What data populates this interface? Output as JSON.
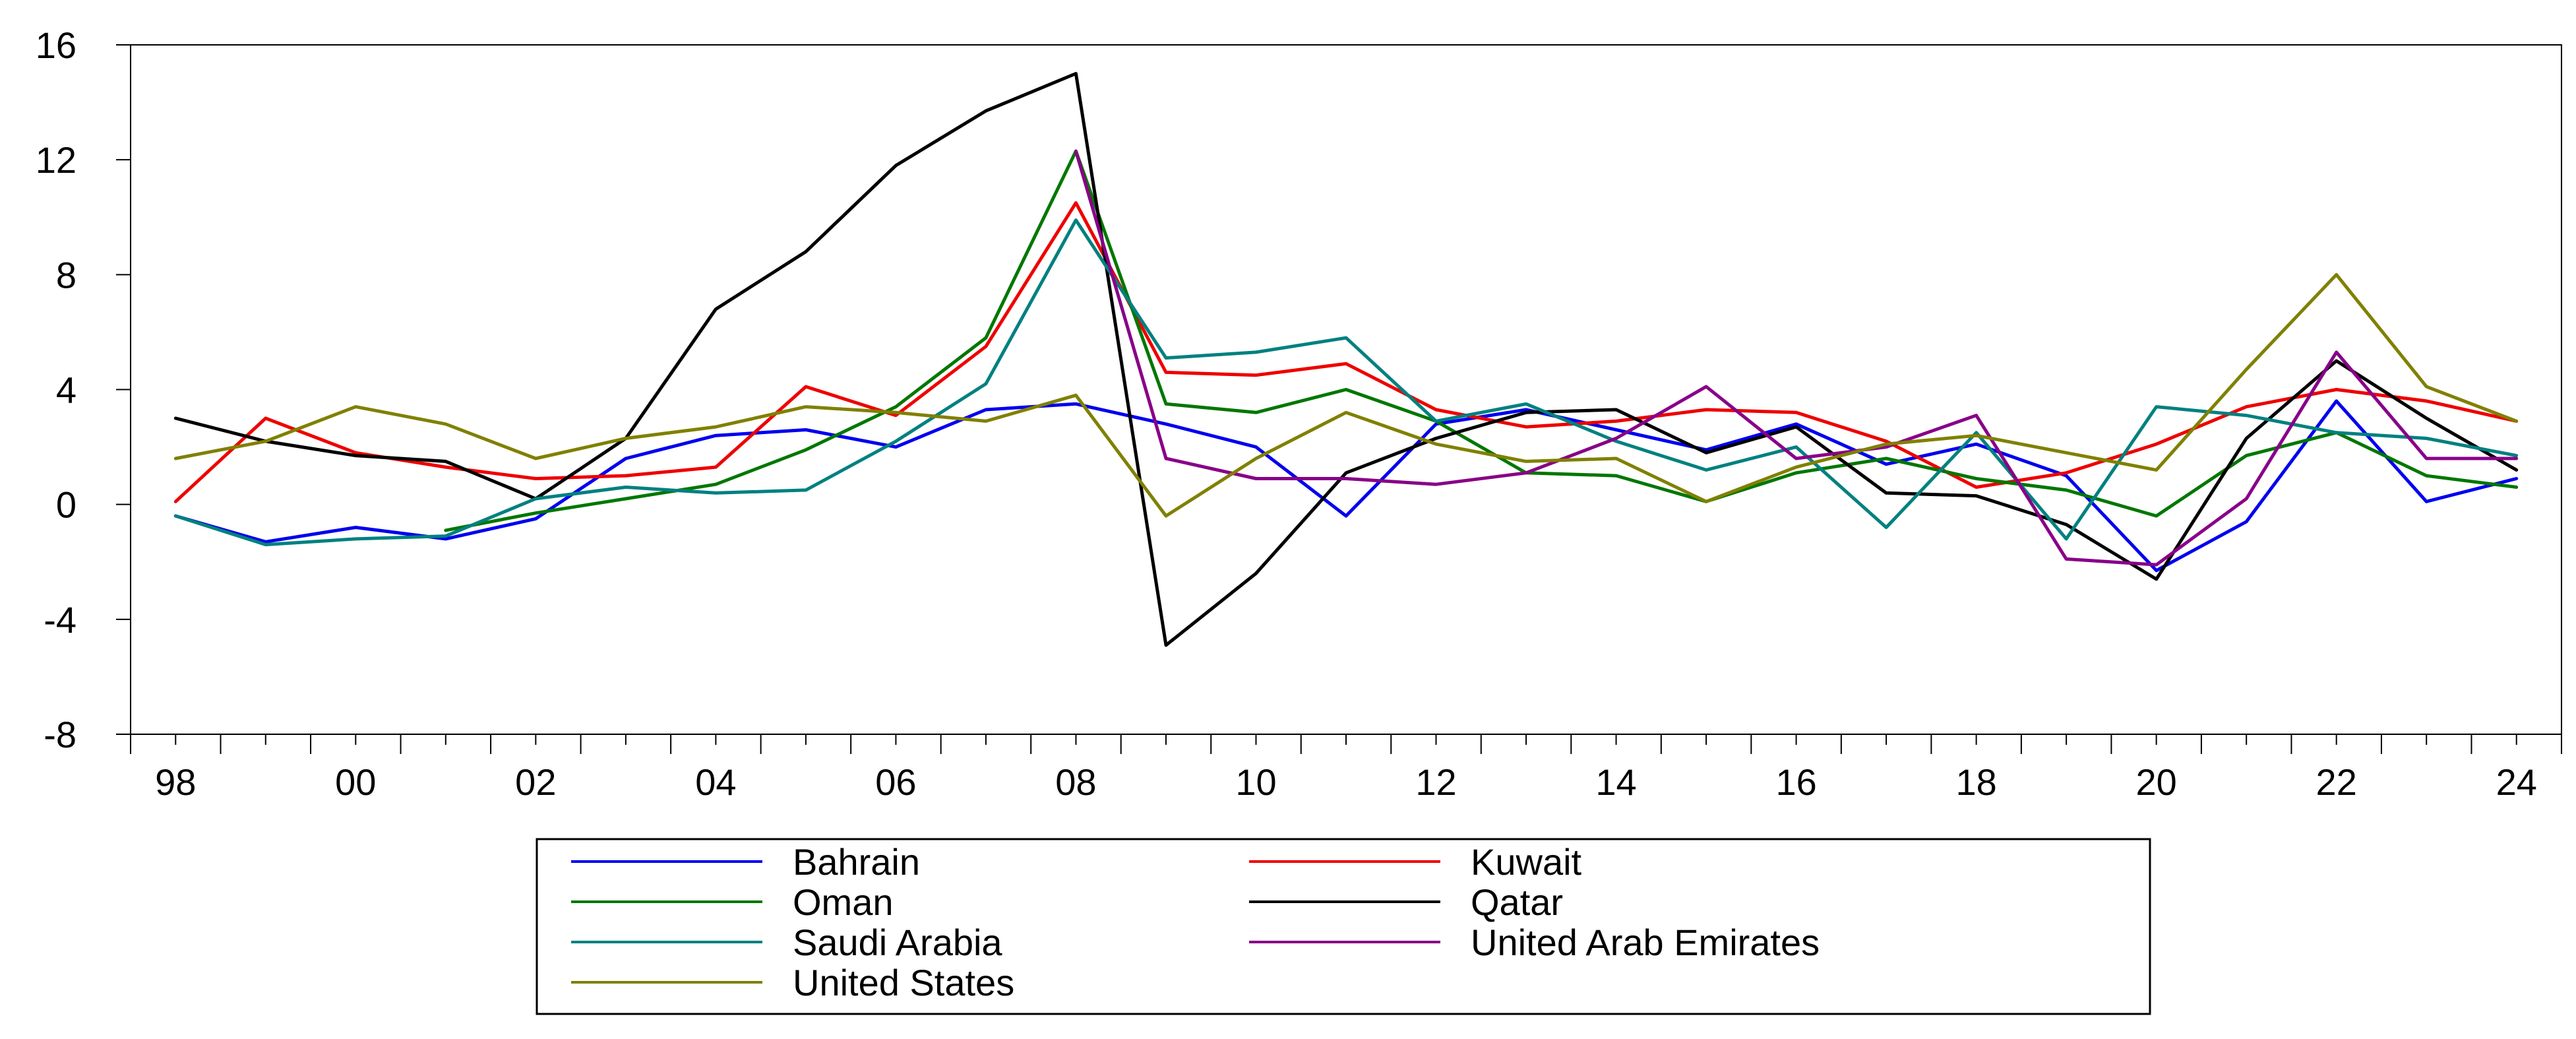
{
  "chart_data": {
    "type": "line",
    "title": "",
    "xlabel": "",
    "ylabel": "",
    "x": [
      1998,
      1999,
      2000,
      2001,
      2002,
      2003,
      2004,
      2005,
      2006,
      2007,
      2008,
      2009,
      2010,
      2011,
      2012,
      2013,
      2014,
      2015,
      2016,
      2017,
      2018,
      2019,
      2020,
      2021,
      2022,
      2023,
      2024
    ],
    "xlim": [
      1997.5,
      2024.5
    ],
    "ylim": [
      -8,
      16
    ],
    "yticks": [
      -8,
      -4,
      0,
      4,
      8,
      12,
      16
    ],
    "xtick_labels": [
      {
        "x": 1998,
        "label": "98"
      },
      {
        "x": 2000,
        "label": "00"
      },
      {
        "x": 2002,
        "label": "02"
      },
      {
        "x": 2004,
        "label": "04"
      },
      {
        "x": 2006,
        "label": "06"
      },
      {
        "x": 2008,
        "label": "08"
      },
      {
        "x": 2010,
        "label": "10"
      },
      {
        "x": 2012,
        "label": "12"
      },
      {
        "x": 2014,
        "label": "14"
      },
      {
        "x": 2016,
        "label": "16"
      },
      {
        "x": 2018,
        "label": "18"
      },
      {
        "x": 2020,
        "label": "20"
      },
      {
        "x": 2022,
        "label": "22"
      },
      {
        "x": 2024,
        "label": "24"
      }
    ],
    "grid": false,
    "legend": "bottom",
    "series": [
      {
        "name": "Bahrain",
        "color": "#0000ee",
        "values": [
          -0.4,
          -1.3,
          -0.8,
          -1.2,
          -0.5,
          1.6,
          2.4,
          2.6,
          2.0,
          3.3,
          3.5,
          2.8,
          2.0,
          -0.4,
          2.8,
          3.3,
          2.6,
          1.9,
          2.8,
          1.4,
          2.1,
          1.0,
          -2.3,
          -0.6,
          3.6,
          0.1,
          0.9
        ]
      },
      {
        "name": "Kuwait",
        "color": "#ee0000",
        "values": [
          0.1,
          3.0,
          1.8,
          1.3,
          0.9,
          1.0,
          1.3,
          4.1,
          3.1,
          5.5,
          10.5,
          4.6,
          4.5,
          4.9,
          3.3,
          2.7,
          2.9,
          3.3,
          3.2,
          2.2,
          0.6,
          1.1,
          2.1,
          3.4,
          4.0,
          3.6,
          2.9
        ]
      },
      {
        "name": "Oman",
        "color": "#007700",
        "values": [
          null,
          null,
          null,
          -0.9,
          -0.3,
          0.2,
          0.7,
          1.9,
          3.4,
          5.8,
          12.3,
          3.5,
          3.2,
          4.0,
          2.9,
          1.1,
          1.0,
          0.1,
          1.1,
          1.6,
          0.9,
          0.5,
          -0.4,
          1.7,
          2.5,
          1.0,
          0.6
        ]
      },
      {
        "name": "Qatar",
        "color": "#000000",
        "values": [
          3.0,
          2.2,
          1.7,
          1.5,
          0.2,
          2.3,
          6.8,
          8.8,
          11.8,
          13.7,
          15.0,
          -4.9,
          -2.4,
          1.1,
          2.3,
          3.2,
          3.3,
          1.8,
          2.7,
          0.4,
          0.3,
          -0.7,
          -2.6,
          2.3,
          5.0,
          3.0,
          1.2
        ]
      },
      {
        "name": "Saudi Arabia",
        "color": "#008080",
        "values": [
          -0.4,
          -1.4,
          -1.2,
          -1.1,
          0.2,
          0.6,
          0.4,
          0.5,
          2.2,
          4.2,
          9.9,
          5.1,
          5.3,
          5.8,
          2.9,
          3.5,
          2.2,
          1.2,
          2.0,
          -0.8,
          2.5,
          -1.2,
          3.4,
          3.1,
          2.5,
          2.3,
          1.7
        ]
      },
      {
        "name": "United Arab Emirates",
        "color": "#880088",
        "values": [
          null,
          null,
          null,
          null,
          null,
          null,
          null,
          null,
          null,
          null,
          12.3,
          1.6,
          0.9,
          0.9,
          0.7,
          1.1,
          2.3,
          4.1,
          1.6,
          2.0,
          3.1,
          -1.9,
          -2.1,
          0.2,
          5.3,
          1.6,
          1.6
        ]
      },
      {
        "name": "United States",
        "color": "#808000",
        "values": [
          1.6,
          2.2,
          3.4,
          2.8,
          1.6,
          2.3,
          2.7,
          3.4,
          3.2,
          2.9,
          3.8,
          -0.4,
          1.6,
          3.2,
          2.1,
          1.5,
          1.6,
          0.1,
          1.3,
          2.1,
          2.4,
          1.8,
          1.2,
          4.7,
          8.0,
          4.1,
          2.9
        ]
      }
    ]
  }
}
